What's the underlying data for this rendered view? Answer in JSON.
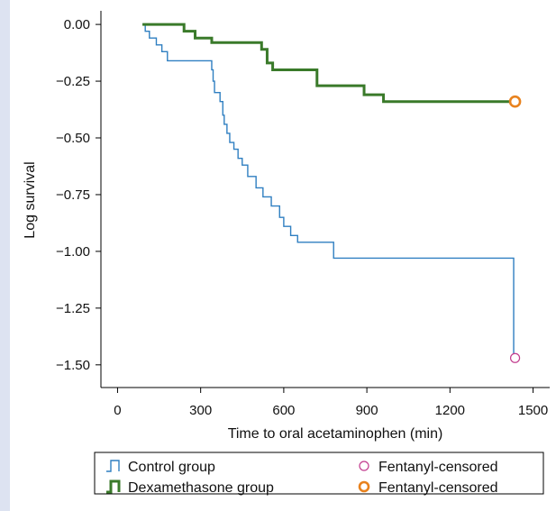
{
  "chart_data": {
    "type": "line",
    "title": "",
    "xlabel": "Time to oral acetaminophen (min)",
    "ylabel": "Log survival",
    "xlim": [
      -60,
      1560
    ],
    "ylim": [
      -1.6,
      0.06
    ],
    "x_ticks": [
      0,
      300,
      600,
      900,
      1200,
      1500
    ],
    "x_tick_labels": [
      "0",
      "300",
      "600",
      "900",
      "1200",
      "1500"
    ],
    "y_ticks": [
      0,
      -0.25,
      -0.5,
      -0.75,
      -1.0,
      -1.25,
      -1.5
    ],
    "y_tick_labels": [
      "0.00",
      "−0.25",
      "−0.50",
      "−0.75",
      "−1.00",
      "−1.25",
      "−1.50"
    ],
    "grid": false,
    "legend_position": "bottom",
    "series": [
      {
        "name": "Control group",
        "step": true,
        "color": "#2f7fc1",
        "x": [
          90,
          100,
          115,
          140,
          160,
          180,
          330,
          340,
          345,
          350,
          370,
          380,
          385,
          395,
          405,
          420,
          435,
          450,
          470,
          500,
          525,
          555,
          585,
          600,
          625,
          650,
          680,
          720,
          780,
          1020,
          1430,
          1435
        ],
        "y": [
          0,
          -0.03,
          -0.06,
          -0.09,
          -0.12,
          -0.16,
          -0.16,
          -0.2,
          -0.25,
          -0.3,
          -0.34,
          -0.4,
          -0.44,
          -0.48,
          -0.52,
          -0.55,
          -0.59,
          -0.62,
          -0.67,
          -0.72,
          -0.76,
          -0.8,
          -0.85,
          -0.89,
          -0.93,
          -0.96,
          -0.96,
          -0.96,
          -1.03,
          -1.03,
          -1.47,
          -1.47
        ],
        "censored": [
          {
            "x": 1435,
            "y": -1.47
          }
        ]
      },
      {
        "name": "Dexamethasone group",
        "step": true,
        "color": "#3a7a2a",
        "x": [
          90,
          240,
          280,
          340,
          500,
          520,
          540,
          560,
          720,
          890,
          960,
          1435
        ],
        "y": [
          0,
          -0.03,
          -0.06,
          -0.08,
          -0.08,
          -0.11,
          -0.17,
          -0.2,
          -0.27,
          -0.31,
          -0.34,
          -0.34
        ],
        "censored": [
          {
            "x": 1435,
            "y": -0.34
          }
        ]
      }
    ],
    "legend": [
      {
        "label": "Control group",
        "kind": "step",
        "color": "#2f7fc1"
      },
      {
        "label": "Fentanyl-censored",
        "kind": "circle",
        "color": "#c23c8e"
      },
      {
        "label": "Dexamethasone group",
        "kind": "step",
        "color": "#3a7a2a"
      },
      {
        "label": "Fentanyl-censored",
        "kind": "circle",
        "color": "#e8821e"
      }
    ]
  }
}
